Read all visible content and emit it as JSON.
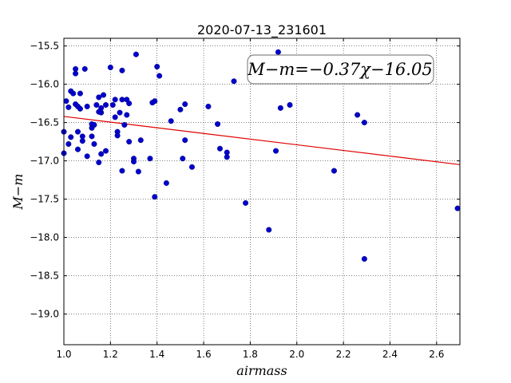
{
  "chart_data": {
    "type": "scatter",
    "title": "2020-07-13_231601",
    "xlabel": "airmass",
    "ylabel": "M−m",
    "xlim": [
      1.0,
      2.7
    ],
    "ylim": [
      -15.4,
      -19.4
    ],
    "y_inverted": true,
    "grid": true,
    "grid_style": "dotted",
    "xticks": [
      "1.0",
      "1.2",
      "1.4",
      "1.6",
      "1.8",
      "2.0",
      "2.2",
      "2.4",
      "2.6"
    ],
    "yticks": [
      "−15.5",
      "−16.0",
      "−16.5",
      "−17.0",
      "−17.5",
      "−18.0",
      "−18.5",
      "−19.0"
    ],
    "fit_label": "M−m=−0.37χ−16.05",
    "fit_slope": -0.37,
    "fit_intercept": -16.05,
    "point_color": "#0000cc",
    "line_color": "#e00000",
    "points": [
      [
        1.0,
        -16.62
      ],
      [
        1.0,
        -16.9
      ],
      [
        1.01,
        -16.22
      ],
      [
        1.02,
        -16.3
      ],
      [
        1.02,
        -16.78
      ],
      [
        1.03,
        -16.09
      ],
      [
        1.03,
        -16.69
      ],
      [
        1.04,
        -16.12
      ],
      [
        1.05,
        -15.8
      ],
      [
        1.05,
        -15.86
      ],
      [
        1.05,
        -16.26
      ],
      [
        1.06,
        -16.29
      ],
      [
        1.06,
        -16.62
      ],
      [
        1.06,
        -16.85
      ],
      [
        1.07,
        -16.12
      ],
      [
        1.07,
        -16.32
      ],
      [
        1.08,
        -16.68
      ],
      [
        1.08,
        -16.74
      ],
      [
        1.09,
        -15.8
      ],
      [
        1.1,
        -16.29
      ],
      [
        1.1,
        -16.94
      ],
      [
        1.12,
        -16.52
      ],
      [
        1.12,
        -16.57
      ],
      [
        1.12,
        -16.68
      ],
      [
        1.13,
        -16.78
      ],
      [
        1.13,
        -16.53
      ],
      [
        1.14,
        -16.27
      ],
      [
        1.15,
        -16.17
      ],
      [
        1.15,
        -16.36
      ],
      [
        1.15,
        -17.02
      ],
      [
        1.16,
        -16.31
      ],
      [
        1.16,
        -16.37
      ],
      [
        1.16,
        -16.91
      ],
      [
        1.17,
        -16.14
      ],
      [
        1.18,
        -16.27
      ],
      [
        1.18,
        -16.87
      ],
      [
        1.2,
        -15.78
      ],
      [
        1.21,
        -16.27
      ],
      [
        1.22,
        -16.2
      ],
      [
        1.22,
        -16.43
      ],
      [
        1.23,
        -16.62
      ],
      [
        1.23,
        -16.67
      ],
      [
        1.24,
        -16.37
      ],
      [
        1.25,
        -15.82
      ],
      [
        1.25,
        -16.2
      ],
      [
        1.25,
        -17.13
      ],
      [
        1.26,
        -16.53
      ],
      [
        1.27,
        -16.4
      ],
      [
        1.27,
        -16.2
      ],
      [
        1.28,
        -16.25
      ],
      [
        1.28,
        -16.75
      ],
      [
        1.3,
        -16.97
      ],
      [
        1.3,
        -17.01
      ],
      [
        1.31,
        -15.61
      ],
      [
        1.32,
        -17.14
      ],
      [
        1.33,
        -16.73
      ],
      [
        1.37,
        -16.97
      ],
      [
        1.38,
        -16.24
      ],
      [
        1.39,
        -16.22
      ],
      [
        1.39,
        -17.47
      ],
      [
        1.4,
        -15.77
      ],
      [
        1.41,
        -15.89
      ],
      [
        1.44,
        -17.29
      ],
      [
        1.46,
        -16.48
      ],
      [
        1.5,
        -16.33
      ],
      [
        1.51,
        -16.97
      ],
      [
        1.52,
        -16.73
      ],
      [
        1.52,
        -16.26
      ],
      [
        1.55,
        -17.08
      ],
      [
        1.62,
        -16.29
      ],
      [
        1.66,
        -16.52
      ],
      [
        1.67,
        -16.84
      ],
      [
        1.7,
        -16.95
      ],
      [
        1.7,
        -16.89
      ],
      [
        1.73,
        -15.96
      ],
      [
        1.78,
        -17.55
      ],
      [
        1.88,
        -17.9
      ],
      [
        1.91,
        -16.87
      ],
      [
        1.92,
        -15.58
      ],
      [
        1.93,
        -16.31
      ],
      [
        1.97,
        -16.27
      ],
      [
        2.16,
        -17.13
      ],
      [
        2.26,
        -16.4
      ],
      [
        2.29,
        -16.5
      ],
      [
        2.29,
        -18.28
      ],
      [
        2.69,
        -17.62
      ]
    ]
  }
}
